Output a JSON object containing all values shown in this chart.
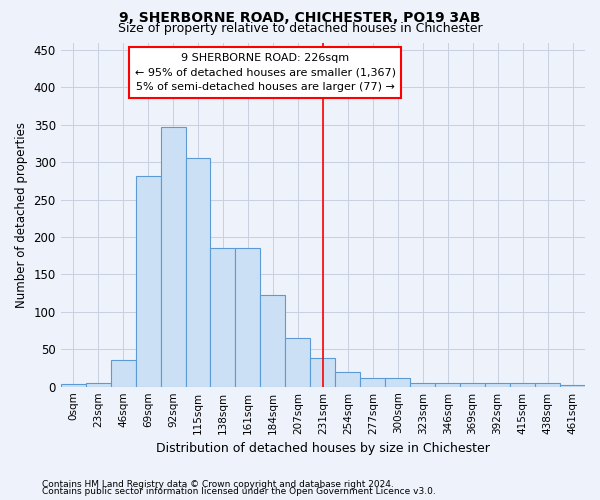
{
  "title": "9, SHERBORNE ROAD, CHICHESTER, PO19 3AB",
  "subtitle": "Size of property relative to detached houses in Chichester",
  "xlabel": "Distribution of detached houses by size in Chichester",
  "ylabel": "Number of detached properties",
  "bar_color": "#cce0f5",
  "bar_edge_color": "#5b9bd5",
  "background_color": "#eef2fb",
  "grid_color": "#c8cfe0",
  "categories": [
    "0sqm",
    "23sqm",
    "46sqm",
    "69sqm",
    "92sqm",
    "115sqm",
    "138sqm",
    "161sqm",
    "184sqm",
    "207sqm",
    "231sqm",
    "254sqm",
    "277sqm",
    "300sqm",
    "323sqm",
    "346sqm",
    "369sqm",
    "392sqm",
    "415sqm",
    "438sqm",
    "461sqm"
  ],
  "values": [
    3,
    5,
    35,
    282,
    347,
    305,
    185,
    185,
    123,
    65,
    38,
    20,
    11,
    11,
    5,
    5,
    5,
    5,
    5,
    5,
    2
  ],
  "red_line_x": 10,
  "annotation_title": "9 SHERBORNE ROAD: 226sqm",
  "annotation_line1": "← 95% of detached houses are smaller (1,367)",
  "annotation_line2": "5% of semi-detached houses are larger (77) →",
  "yticks": [
    0,
    50,
    100,
    150,
    200,
    250,
    300,
    350,
    400,
    450
  ],
  "footer1": "Contains HM Land Registry data © Crown copyright and database right 2024.",
  "footer2": "Contains public sector information licensed under the Open Government Licence v3.0."
}
